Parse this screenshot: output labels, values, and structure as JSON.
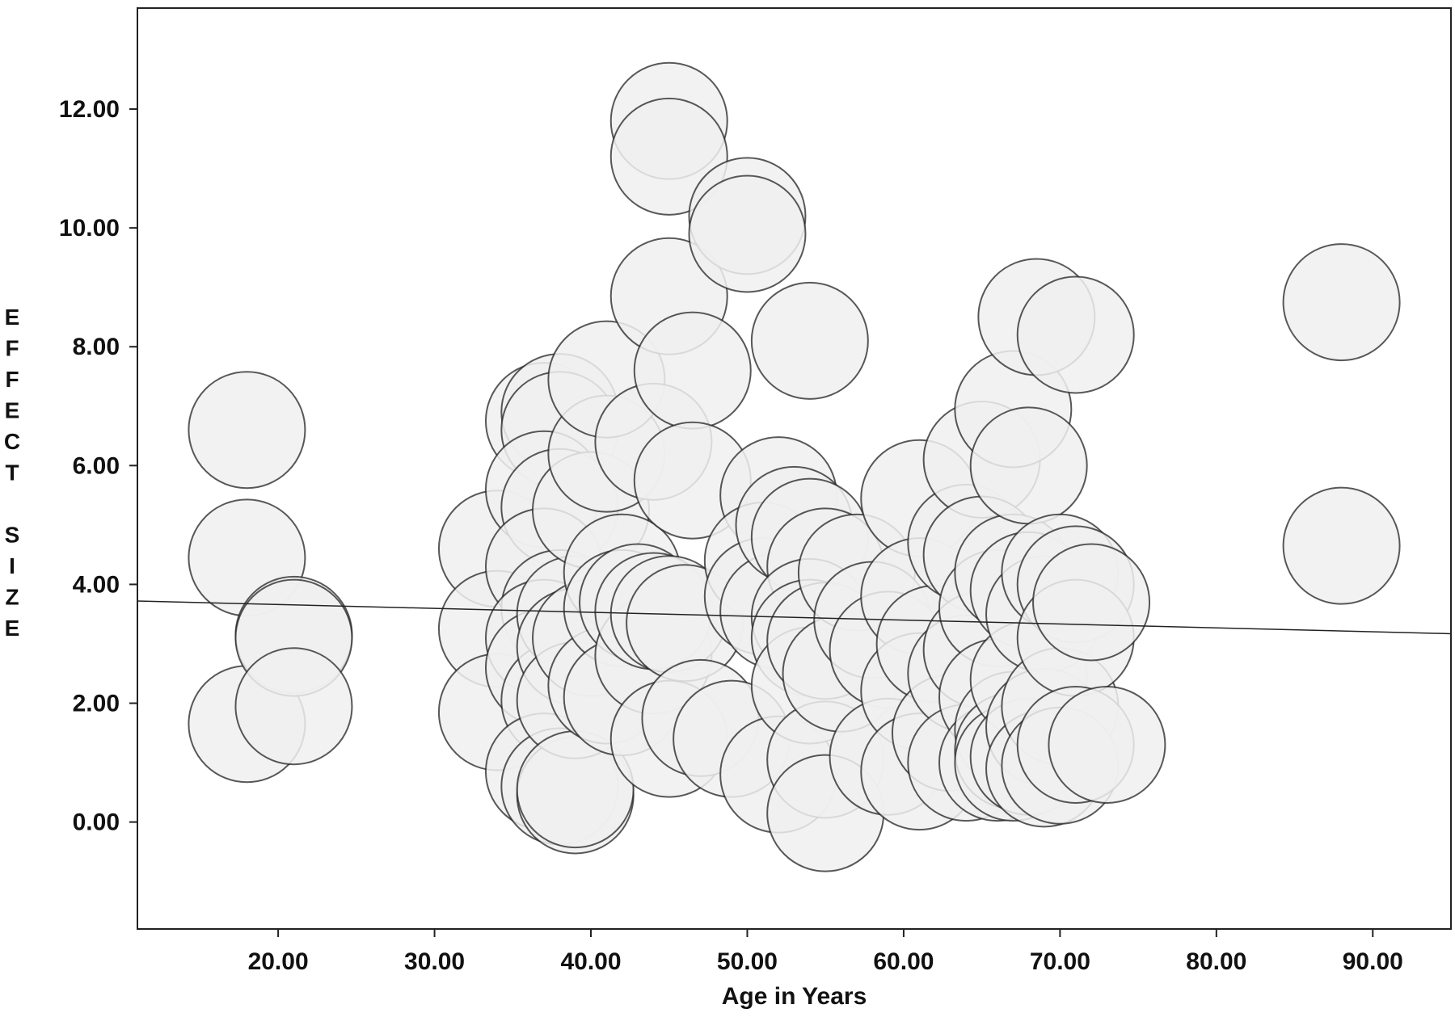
{
  "chart_data": {
    "type": "scatter",
    "title": "",
    "xlabel": "Age in Years",
    "ylabel": "EFFECT SIZE",
    "xlim": [
      11,
      95
    ],
    "ylim": [
      -1.8,
      13.7
    ],
    "xticks": [
      20,
      30,
      40,
      50,
      60,
      70,
      80,
      90
    ],
    "yticks": [
      0,
      2,
      4,
      6,
      8,
      10,
      12
    ],
    "xtick_labels": [
      "20.00",
      "30.00",
      "40.00",
      "50.00",
      "60.00",
      "70.00",
      "80.00",
      "90.00"
    ],
    "ytick_labels": [
      "0.00",
      "2.00",
      "4.00",
      "6.00",
      "8.00",
      "10.00",
      "12.00"
    ],
    "grid": false,
    "marker": "bubble",
    "colors": {
      "fill": "#f0f0f0",
      "stroke": "#222222",
      "line": "#222222"
    },
    "regression_line": {
      "x": [
        11,
        95
      ],
      "y": [
        3.72,
        3.17
      ]
    },
    "points": [
      {
        "x": 18,
        "y": 6.6
      },
      {
        "x": 18,
        "y": 4.45
      },
      {
        "x": 18,
        "y": 1.65
      },
      {
        "x": 21,
        "y": 3.15
      },
      {
        "x": 21,
        "y": 3.1
      },
      {
        "x": 21,
        "y": 1.95
      },
      {
        "x": 34,
        "y": 4.6
      },
      {
        "x": 34,
        "y": 3.25
      },
      {
        "x": 34,
        "y": 1.85
      },
      {
        "x": 37,
        "y": 6.75
      },
      {
        "x": 38,
        "y": 6.9
      },
      {
        "x": 38,
        "y": 6.6
      },
      {
        "x": 37,
        "y": 5.6
      },
      {
        "x": 38,
        "y": 5.3
      },
      {
        "x": 37,
        "y": 4.3
      },
      {
        "x": 38,
        "y": 3.6
      },
      {
        "x": 37,
        "y": 3.1
      },
      {
        "x": 37,
        "y": 2.6
      },
      {
        "x": 38,
        "y": 2.05
      },
      {
        "x": 37,
        "y": 0.85
      },
      {
        "x": 38,
        "y": 0.6
      },
      {
        "x": 39,
        "y": 0.45
      },
      {
        "x": 39,
        "y": 3.5
      },
      {
        "x": 39,
        "y": 2.95
      },
      {
        "x": 39,
        "y": 2.05
      },
      {
        "x": 39,
        "y": 0.55
      },
      {
        "x": 40,
        "y": 5.25
      },
      {
        "x": 41,
        "y": 6.2
      },
      {
        "x": 41,
        "y": 7.45
      },
      {
        "x": 40,
        "y": 3.1
      },
      {
        "x": 41,
        "y": 2.3
      },
      {
        "x": 42,
        "y": 4.2
      },
      {
        "x": 42,
        "y": 3.6
      },
      {
        "x": 42,
        "y": 2.1
      },
      {
        "x": 43,
        "y": 3.7
      },
      {
        "x": 44,
        "y": 2.8
      },
      {
        "x": 44,
        "y": 3.55
      },
      {
        "x": 44,
        "y": 6.4
      },
      {
        "x": 45,
        "y": 11.8
      },
      {
        "x": 45,
        "y": 11.2
      },
      {
        "x": 45,
        "y": 8.85
      },
      {
        "x": 45,
        "y": 3.5
      },
      {
        "x": 45,
        "y": 1.4
      },
      {
        "x": 46.5,
        "y": 7.6
      },
      {
        "x": 46.5,
        "y": 5.75
      },
      {
        "x": 46,
        "y": 3.35
      },
      {
        "x": 47,
        "y": 1.75
      },
      {
        "x": 49,
        "y": 1.4
      },
      {
        "x": 50,
        "y": 10.2
      },
      {
        "x": 50,
        "y": 9.9
      },
      {
        "x": 52,
        "y": 5.5
      },
      {
        "x": 51,
        "y": 4.4
      },
      {
        "x": 51,
        "y": 3.8
      },
      {
        "x": 52,
        "y": 3.55
      },
      {
        "x": 52,
        "y": 0.8
      },
      {
        "x": 54,
        "y": 8.1
      },
      {
        "x": 53,
        "y": 5.0
      },
      {
        "x": 54,
        "y": 4.8
      },
      {
        "x": 55,
        "y": 4.3
      },
      {
        "x": 54,
        "y": 3.45
      },
      {
        "x": 54,
        "y": 3.1
      },
      {
        "x": 54,
        "y": 2.3
      },
      {
        "x": 55,
        "y": 3.05
      },
      {
        "x": 55,
        "y": 1.05
      },
      {
        "x": 55,
        "y": 0.15
      },
      {
        "x": 56,
        "y": 2.5
      },
      {
        "x": 57,
        "y": 4.2
      },
      {
        "x": 58,
        "y": 3.4
      },
      {
        "x": 59,
        "y": 2.9
      },
      {
        "x": 59,
        "y": 1.1
      },
      {
        "x": 61,
        "y": 5.45
      },
      {
        "x": 61,
        "y": 3.8
      },
      {
        "x": 61,
        "y": 2.2
      },
      {
        "x": 61,
        "y": 0.85
      },
      {
        "x": 62,
        "y": 3.0
      },
      {
        "x": 63,
        "y": 1.5
      },
      {
        "x": 64,
        "y": 4.7
      },
      {
        "x": 64,
        "y": 2.5
      },
      {
        "x": 64,
        "y": 1.0
      },
      {
        "x": 65,
        "y": 6.1
      },
      {
        "x": 65,
        "y": 4.5
      },
      {
        "x": 65,
        "y": 2.9
      },
      {
        "x": 66,
        "y": 3.6
      },
      {
        "x": 66,
        "y": 2.1
      },
      {
        "x": 66,
        "y": 1.0
      },
      {
        "x": 67,
        "y": 6.95
      },
      {
        "x": 67,
        "y": 4.2
      },
      {
        "x": 67,
        "y": 1.55
      },
      {
        "x": 67,
        "y": 1.2
      },
      {
        "x": 67,
        "y": 1.0
      },
      {
        "x": 68,
        "y": 6.0
      },
      {
        "x": 68,
        "y": 3.9
      },
      {
        "x": 68,
        "y": 2.4
      },
      {
        "x": 68,
        "y": 1.1
      },
      {
        "x": 68.5,
        "y": 8.5
      },
      {
        "x": 69,
        "y": 3.5
      },
      {
        "x": 69,
        "y": 1.6
      },
      {
        "x": 69,
        "y": 0.9
      },
      {
        "x": 70,
        "y": 4.2
      },
      {
        "x": 70,
        "y": 1.95
      },
      {
        "x": 70,
        "y": 0.95
      },
      {
        "x": 71,
        "y": 8.2
      },
      {
        "x": 71,
        "y": 4.0
      },
      {
        "x": 71,
        "y": 3.1
      },
      {
        "x": 71,
        "y": 1.3
      },
      {
        "x": 72,
        "y": 3.7
      },
      {
        "x": 73,
        "y": 1.3
      },
      {
        "x": 88,
        "y": 8.75
      },
      {
        "x": 88,
        "y": 4.65
      }
    ]
  }
}
